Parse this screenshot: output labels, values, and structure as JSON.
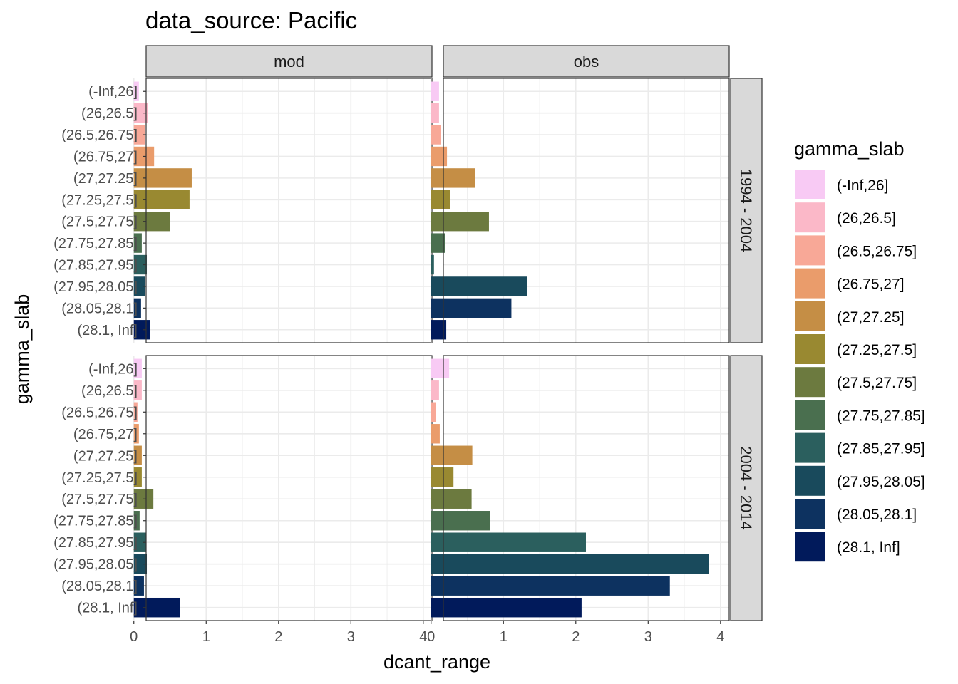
{
  "chart_data": {
    "type": "bar",
    "orientation": "horizontal",
    "title": "data_source: Pacific",
    "xlabel": "dcant_range",
    "ylabel": "gamma_slab",
    "xlim": [
      0,
      4
    ],
    "x_ticks": [
      "0",
      "1",
      "2",
      "3",
      "4"
    ],
    "grid": true,
    "legend_title": "gamma_slab",
    "legend_position": "right",
    "categories": [
      "(-Inf,26]",
      "(26,26.5]",
      "(26.5,26.75]",
      "(26.75,27]",
      "(27,27.25]",
      "(27.25,27.5]",
      "(27.5,27.75]",
      "(27.75,27.85]",
      "(27.85,27.95]",
      "(27.95,28.05]",
      "(28.05,28.1]",
      "(28.1, Inf]"
    ],
    "colors": [
      "#F8CAF4",
      "#FBB8C8",
      "#F8A897",
      "#EA9C6B",
      "#C58E45",
      "#998931",
      "#6C7A3F",
      "#4A6F4F",
      "#2B5F5E",
      "#194A5C",
      "#0D3260",
      "#011A5B"
    ],
    "col_facets": [
      "mod",
      "obs"
    ],
    "row_facets": [
      "1994 - 2004",
      "2004 - 2014"
    ],
    "panels": [
      {
        "col": "mod",
        "row": "1994 - 2004",
        "values": [
          0.07,
          0.19,
          0.16,
          0.28,
          0.8,
          0.77,
          0.5,
          0.11,
          0.18,
          0.16,
          0.1,
          0.22
        ]
      },
      {
        "col": "obs",
        "row": "1994 - 2004",
        "values": [
          0.11,
          0.11,
          0.14,
          0.22,
          0.61,
          0.26,
          0.8,
          0.19,
          0.04,
          1.33,
          1.11,
          0.21
        ]
      },
      {
        "col": "mod",
        "row": "2004 - 2014",
        "values": [
          0.11,
          0.11,
          0.05,
          0.07,
          0.11,
          0.11,
          0.27,
          0.08,
          0.17,
          0.18,
          0.14,
          0.64
        ]
      },
      {
        "col": "obs",
        "row": "2004 - 2014",
        "values": [
          0.25,
          0.11,
          0.07,
          0.12,
          0.57,
          0.31,
          0.56,
          0.82,
          2.14,
          3.84,
          3.3,
          2.08
        ]
      }
    ]
  }
}
